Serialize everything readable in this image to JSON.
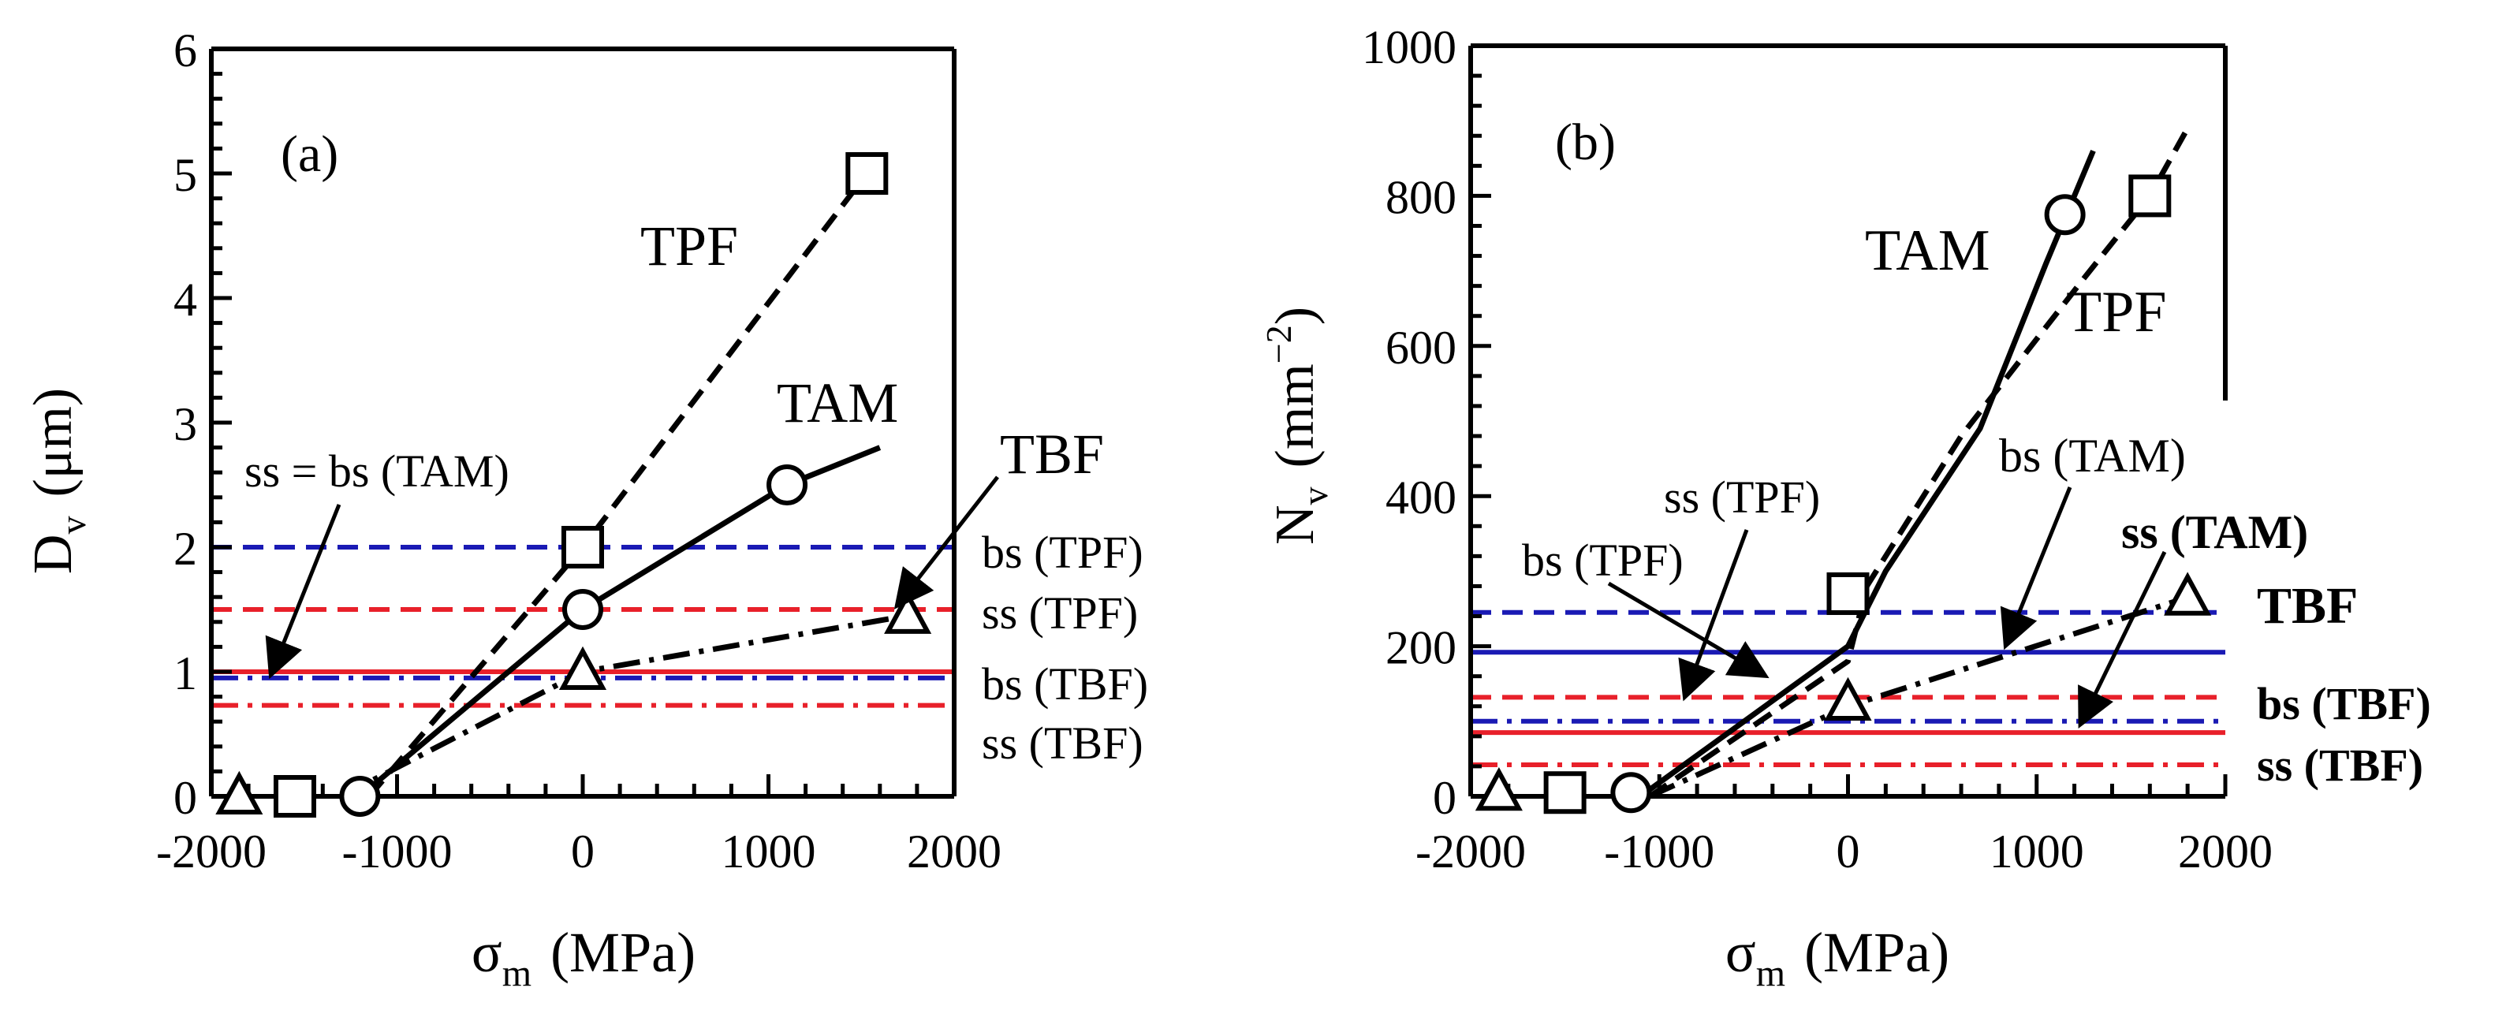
{
  "chart_data": [
    {
      "type": "line",
      "panel_label": "(a)",
      "xlabel_main": "σ",
      "xlabel_sub": "m",
      "xlabel_unit": "(MPa)",
      "ylabel_main": "D",
      "ylabel_sub": "v",
      "ylabel_unit": "(μm)",
      "xlim": [
        -2000,
        2000
      ],
      "ylim": [
        0,
        6
      ],
      "xticks": [
        -2000,
        -1000,
        0,
        1000,
        2000
      ],
      "xtick_labels": [
        "-2000",
        "-1000",
        "0",
        "1000",
        "2000"
      ],
      "yticks": [
        0,
        1,
        2,
        3,
        4,
        5,
        6
      ],
      "ytick_labels": [
        "0",
        "1",
        "2",
        "3",
        "4",
        "5",
        "6"
      ],
      "series": [
        {
          "name": "TPF",
          "marker": "square",
          "style": "dashed",
          "points": [
            [
              -1550,
              0
            ],
            [
              0,
              2.0
            ],
            [
              1530,
              5.0
            ]
          ],
          "line": [
            [
              -1150,
              0
            ],
            [
              0,
              2.0
            ],
            [
              1530,
              5.0
            ]
          ]
        },
        {
          "name": "TAM",
          "marker": "circle",
          "style": "solid",
          "points": [
            [
              -1200,
              0
            ],
            [
              0,
              1.5
            ],
            [
              1100,
              2.5
            ]
          ],
          "line": [
            [
              -1200,
              0
            ],
            [
              0,
              1.5
            ],
            [
              1100,
              2.5
            ],
            [
              1600,
              2.8
            ]
          ]
        },
        {
          "name": "TBF",
          "marker": "triangle",
          "style": "dashdot",
          "points": [
            [
              -1850,
              0
            ],
            [
              0,
              1.0
            ],
            [
              1750,
              1.45
            ]
          ],
          "line": [
            [
              -1300,
              0
            ],
            [
              0,
              1.0
            ],
            [
              1750,
              1.45
            ]
          ]
        }
      ],
      "reference_lines": [
        {
          "name": "bs (TPF)",
          "y": 2.0,
          "color": "#1a1ab4",
          "style": "dashed"
        },
        {
          "name": "ss (TPF)",
          "y": 1.5,
          "color": "#e8202a",
          "style": "dashed"
        },
        {
          "name": "ss = bs (TAM)",
          "y": 1.0,
          "color": "#e8202a",
          "style": "solid"
        },
        {
          "name": "bs (TBF)",
          "y": 0.95,
          "color": "#1a1ab4",
          "style": "dashdot"
        },
        {
          "name": "ss (TBF)",
          "y": 0.73,
          "color": "#e8202a",
          "style": "dashdot"
        }
      ],
      "annotations": {
        "tpf": "TPF",
        "tam": "TAM",
        "tbf": "TBF",
        "ss_bs_tam": "ss = bs (TAM)",
        "bs_tpf": "bs (TPF)",
        "ss_tpf": "ss (TPF)",
        "bs_tbf": "bs (TBF)",
        "ss_tbf": "ss (TBF)"
      }
    },
    {
      "type": "line",
      "panel_label": "(b)",
      "xlabel_main": "σ",
      "xlabel_sub": "m",
      "xlabel_unit": "(MPa)",
      "ylabel_main": "N",
      "ylabel_sub": "v",
      "ylabel_unit_pre": "(mm",
      "ylabel_unit_sup": "−2",
      "ylabel_unit_post": ")",
      "xlim": [
        -2000,
        2000
      ],
      "ylim": [
        0,
        1000
      ],
      "xticks": [
        -2000,
        -1000,
        0,
        1000,
        2000
      ],
      "xtick_labels": [
        "-2000",
        "-1000",
        "0",
        "1000",
        "2000"
      ],
      "yticks": [
        0,
        200,
        400,
        600,
        800,
        1000
      ],
      "ytick_labels": [
        "0",
        "200",
        "400",
        "600",
        "800",
        "1000"
      ],
      "series": [
        {
          "name": "TAM",
          "marker": "circle",
          "style": "solid",
          "points": [
            [
              -1150,
              5
            ],
            [
              1150,
              775
            ]
          ],
          "line": [
            [
              -1100,
              0
            ],
            [
              0,
              200
            ],
            [
              200,
              300
            ],
            [
              700,
              490
            ],
            [
              1050,
              710
            ],
            [
              1300,
              860
            ]
          ]
        },
        {
          "name": "TPF",
          "marker": "square",
          "style": "dashed",
          "points": [
            [
              -1500,
              5
            ],
            [
              0,
              270
            ],
            [
              1600,
              800
            ]
          ],
          "line": [
            [
              -1050,
              0
            ],
            [
              0,
              180
            ],
            [
              100,
              280
            ],
            [
              600,
              480
            ],
            [
              1250,
              690
            ],
            [
              1600,
              800
            ],
            [
              1800,
              890
            ]
          ]
        },
        {
          "name": "TBF",
          "marker": "triangle",
          "style": "dashdot",
          "points": [
            [
              -1850,
              5
            ],
            [
              0,
              125
            ],
            [
              1800,
              265
            ]
          ],
          "line": [
            [
              -1050,
              0
            ],
            [
              0,
              120
            ],
            [
              1800,
              265
            ]
          ]
        }
      ],
      "reference_lines": [
        {
          "name": "bs (TPF)",
          "y": 245,
          "color": "#1a1ab4",
          "style": "dashed"
        },
        {
          "name": "bs (TAM)",
          "y": 192,
          "color": "#1a1ab4",
          "style": "solid"
        },
        {
          "name": "ss (TPF)",
          "y": 132,
          "color": "#e8202a",
          "style": "dashed"
        },
        {
          "name": "bs (TBF)",
          "y": 100,
          "color": "#1a1ab4",
          "style": "dashdot"
        },
        {
          "name": "ss (TAM)",
          "y": 85,
          "color": "#e8202a",
          "style": "solid"
        },
        {
          "name": "ss (TBF)",
          "y": 42,
          "color": "#e8202a",
          "style": "dashdot"
        }
      ],
      "annotations": {
        "tam": "TAM",
        "tpf": "TPF",
        "tbf": "TBF",
        "ss_tpf": "ss (TPF)",
        "bs_tpf": "bs (TPF)",
        "bs_tam": "bs  (TAM)",
        "ss_tam": "ss  (TAM)",
        "bs_tbf": "bs (TBF)",
        "ss_tbf": "ss (TBF)"
      }
    }
  ]
}
